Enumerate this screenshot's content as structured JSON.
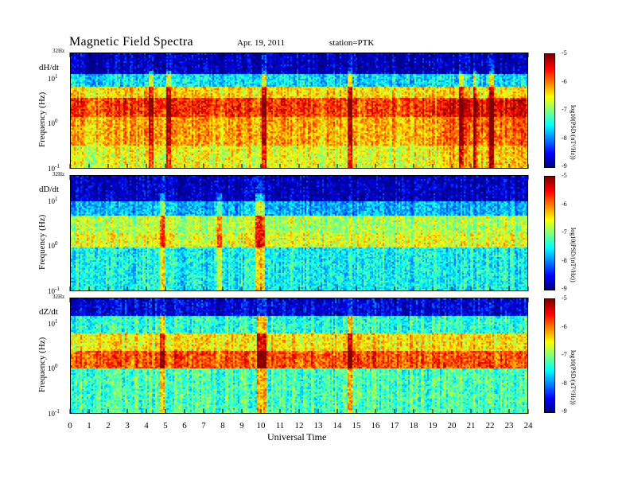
{
  "header": {
    "title": "Magnetic  Field  Spectra",
    "date": "Apr. 19, 2011",
    "station": "station=PTK"
  },
  "chart_data": {
    "type": "heatmap",
    "xlabel": "Universal Time",
    "x_ticks": [
      "0",
      "1",
      "2",
      "3",
      "4",
      "5",
      "6",
      "7",
      "8",
      "9",
      "10",
      "11",
      "12",
      "13",
      "14",
      "15",
      "16",
      "17",
      "18",
      "19",
      "20",
      "21",
      "22",
      "23",
      "24"
    ],
    "xlim": [
      0,
      24
    ],
    "ylim_hz": [
      0.1,
      32
    ],
    "y_scale": "log",
    "colorscale": "jet",
    "colorbar_range": [
      -9,
      -5
    ],
    "colorbar_ticks": [
      "-5",
      "-6",
      "-7",
      "-8",
      "-9"
    ],
    "colorbar_label": "log10(PSD/(nT²/Hz))",
    "panels": [
      {
        "component": "dH/dt",
        "ylabel": "Frequency  (Hz)",
        "top_label": "32Hz",
        "y_ticks": [
          "10¹",
          "10⁰",
          "10⁻¹"
        ]
      },
      {
        "component": "dD/dt",
        "ylabel": "Frequency  (Hz)",
        "top_label": "32Hz",
        "y_ticks": [
          "10¹",
          "10⁰",
          "10⁻¹"
        ]
      },
      {
        "component": "dZ/dt",
        "ylabel": "Frequency  (Hz)",
        "top_label": "32Hz",
        "y_ticks": [
          "10¹",
          "10⁰",
          "10⁻¹"
        ]
      }
    ]
  }
}
